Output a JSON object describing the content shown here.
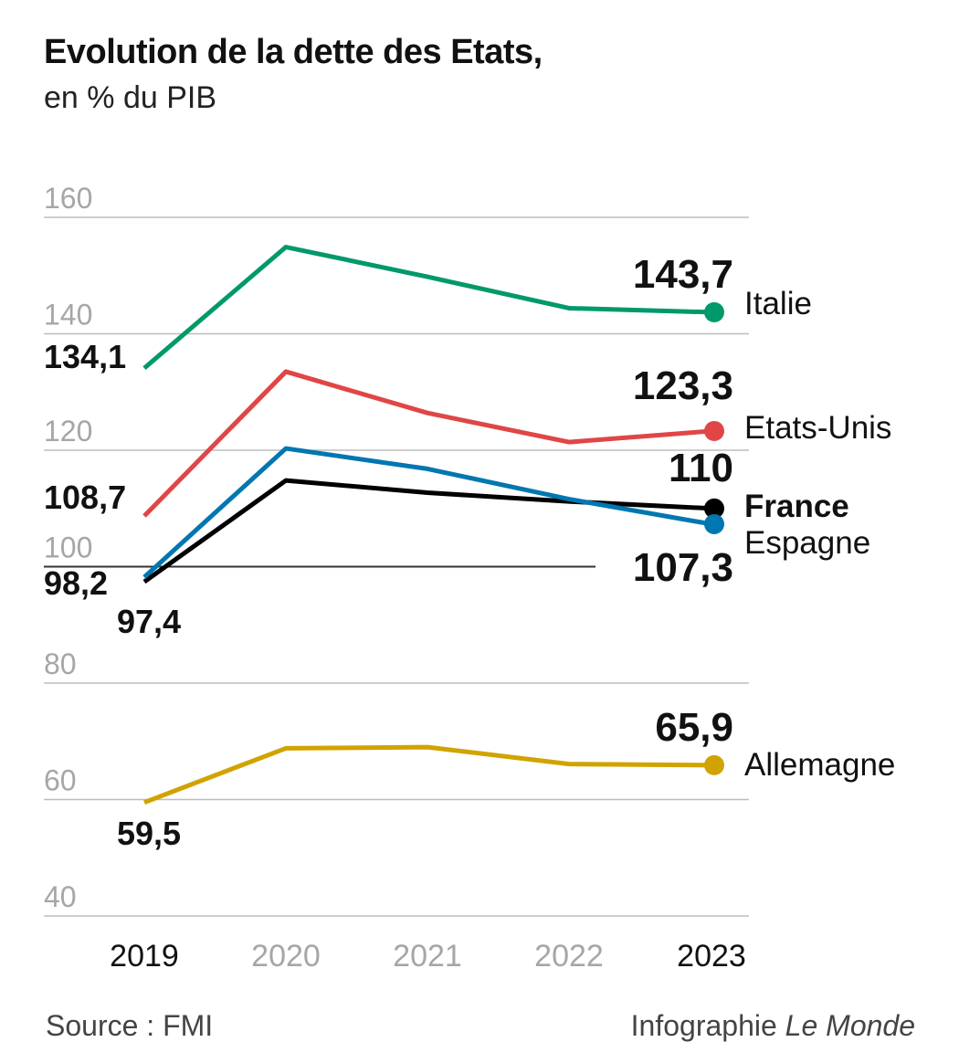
{
  "header": {
    "title": "Evolution de la dette des Etats,",
    "subtitle": "en % du PIB"
  },
  "footer": {
    "source": "Source : FMI",
    "credit_prefix": "Infographie ",
    "credit_brand": "Le Monde"
  },
  "chart_data": {
    "type": "line",
    "title": "Evolution de la dette des Etats,",
    "subtitle": "en % du PIB",
    "x": [
      "2019",
      "2020",
      "2021",
      "2022",
      "2023"
    ],
    "highlight_x": [
      "2019",
      "2023"
    ],
    "ylim": [
      40,
      160
    ],
    "yticks": [
      40,
      60,
      80,
      100,
      120,
      140,
      160
    ],
    "grid": true,
    "baseline": 100,
    "series": [
      {
        "name": "Italie",
        "color": "#00996b",
        "values": [
          134.1,
          154.9,
          149.8,
          144.4,
          143.7
        ],
        "start_label": "134,1",
        "end_label": "143,7",
        "bold_name": false
      },
      {
        "name": "Etats-Unis",
        "color": "#e04646",
        "values": [
          108.7,
          133.5,
          126.4,
          121.4,
          123.3
        ],
        "start_label": "108,7",
        "end_label": "123,3",
        "bold_name": false
      },
      {
        "name": "France",
        "color": "#000000",
        "values": [
          97.4,
          114.8,
          112.7,
          111.2,
          110
        ],
        "start_label": "97,4",
        "end_label": "110",
        "bold_name": true
      },
      {
        "name": "Espagne",
        "color": "#0077b0",
        "values": [
          98.2,
          120.3,
          116.8,
          111.6,
          107.3
        ],
        "start_label": "98,2",
        "end_label": "107,3",
        "bold_name": false
      },
      {
        "name": "Allemagne",
        "color": "#d1a300",
        "values": [
          59.5,
          68.8,
          69.0,
          66.1,
          65.9
        ],
        "start_label": "59,5",
        "end_label": "65,9",
        "bold_name": false
      }
    ]
  }
}
